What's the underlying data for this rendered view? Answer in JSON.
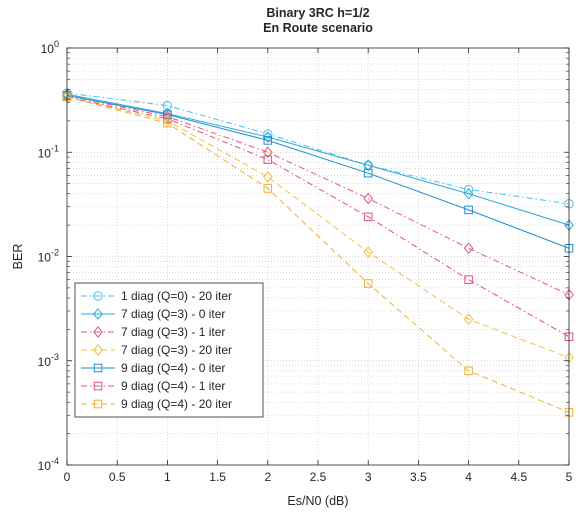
{
  "chart_data": {
    "type": "line",
    "title": [
      "Binary 3RC h=1/2",
      "En Route scenario"
    ],
    "xlabel": "Es/N0 (dB)",
    "ylabel": "BER",
    "x": [
      0,
      1,
      2,
      3,
      4,
      5
    ],
    "xlim": [
      0,
      5
    ],
    "xticks": [
      0,
      0.5,
      1,
      1.5,
      2,
      2.5,
      3,
      3.5,
      4,
      4.5,
      5
    ],
    "xtick_labels": [
      "0",
      "0.5",
      "1",
      "1.5",
      "2",
      "2.5",
      "3",
      "3.5",
      "4",
      "4.5",
      "5"
    ],
    "yscale": "log",
    "ylim": [
      0.0001,
      1
    ],
    "ytick_labels": [
      {
        "base": "10",
        "exp": "0"
      },
      {
        "base": "10",
        "exp": "-1"
      },
      {
        "base": "10",
        "exp": "-2"
      },
      {
        "base": "10",
        "exp": "-3"
      },
      {
        "base": "10",
        "exp": "-4"
      }
    ],
    "grid": true,
    "minor_grid": true,
    "legend_position": "bottom-left",
    "series": [
      {
        "name": "1 diag (Q=0) - 20 iter",
        "color": "#4DBEEE",
        "dash": "dashdot",
        "marker": "circle",
        "values": [
          0.37,
          0.28,
          0.15,
          0.075,
          0.044,
          0.032
        ]
      },
      {
        "name": "7 diag (Q=3) - 0 iter",
        "color": "#2BA8DA",
        "dash": "solid",
        "marker": "diamond",
        "values": [
          0.36,
          0.235,
          0.14,
          0.075,
          0.04,
          0.02
        ]
      },
      {
        "name": "7 diag (Q=3) - 1 iter",
        "color": "#E05A7A",
        "dash": "dashdot",
        "marker": "diamond",
        "values": [
          0.35,
          0.22,
          0.1,
          0.036,
          0.012,
          0.0043
        ]
      },
      {
        "name": "7 diag (Q=3) - 20 iter",
        "color": "#F0C040",
        "dash": "dashed",
        "marker": "diamond",
        "values": [
          0.34,
          0.2,
          0.058,
          0.011,
          0.0025,
          0.00107
        ]
      },
      {
        "name": "9 diag (Q=4) - 0 iter",
        "color": "#1F8FD0",
        "dash": "solid",
        "marker": "square",
        "values": [
          0.35,
          0.23,
          0.13,
          0.063,
          0.028,
          0.012
        ]
      },
      {
        "name": "9 diag (Q=4) - 1 iter",
        "color": "#E0507A",
        "dash": "dashdot",
        "marker": "square",
        "values": [
          0.34,
          0.21,
          0.085,
          0.024,
          0.006,
          0.0017
        ]
      },
      {
        "name": "9 diag (Q=4) - 20 iter",
        "color": "#F0B030",
        "dash": "dashed",
        "marker": "square",
        "values": [
          0.34,
          0.19,
          0.045,
          0.0055,
          0.0008,
          0.00032
        ]
      }
    ]
  }
}
